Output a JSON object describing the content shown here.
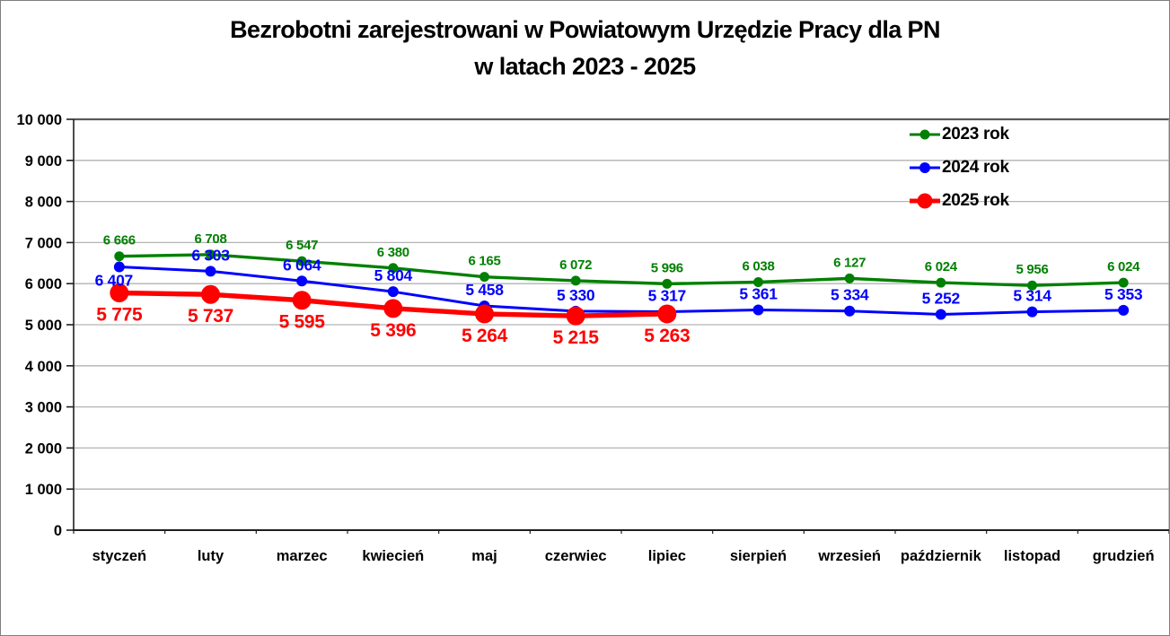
{
  "window": {
    "background": "#ffffff",
    "border_color": "#7f7f7f"
  },
  "title": {
    "line1": "Bezrobotni zarejestrowani w Powiatowym Urzędzie Pracy dla PN",
    "line2": "w latach 2023 - 2025"
  },
  "legend": {
    "items": [
      {
        "label": "2023 rok",
        "color": "#008000"
      },
      {
        "label": "2024 rok",
        "color": "#0000ff"
      },
      {
        "label": "2025 rok",
        "color": "#ff0000"
      }
    ]
  },
  "chart_data": {
    "type": "line",
    "title": "Bezrobotni zarejestrowani w Powiatowym Urzędzie Pracy dla PN w latach 2023 - 2025",
    "categories": [
      "styczeń",
      "luty",
      "marzec",
      "kwiecień",
      "maj",
      "czerwiec",
      "lipiec",
      "sierpień",
      "wrzesień",
      "październik",
      "listopad",
      "grudzień"
    ],
    "series": [
      {
        "name": "2023 rok",
        "color": "#008000",
        "values": [
          6666,
          6708,
          6547,
          6380,
          6165,
          6072,
          5996,
          6038,
          6127,
          6024,
          5956,
          6024
        ],
        "labels": [
          "6 666",
          "6 708",
          "6 547",
          "6 380",
          "6 165",
          "6 072",
          "5 996",
          "6 038",
          "6 127",
          "6 024",
          "5 956",
          "6 024"
        ]
      },
      {
        "name": "2024 rok",
        "color": "#0000ff",
        "values": [
          6407,
          6303,
          6064,
          5804,
          5458,
          5330,
          5317,
          5361,
          5334,
          5252,
          5314,
          5353
        ],
        "labels": [
          "6 407",
          "6 303",
          "6 064",
          "5 804",
          "5 458",
          "5 330",
          "5 317",
          "5 361",
          "5 334",
          "5 252",
          "5 314",
          "5 353"
        ]
      },
      {
        "name": "2025 rok",
        "color": "#ff0000",
        "values": [
          5775,
          5737,
          5595,
          5396,
          5264,
          5215,
          5263
        ],
        "labels": [
          "5 775",
          "5 737",
          "5 595",
          "5 396",
          "5 264",
          "5 215",
          "5 263"
        ]
      }
    ],
    "xlabel": "",
    "ylabel": "",
    "ylim": [
      0,
      10000
    ],
    "y_step": 1000,
    "y_tick_labels": [
      "0",
      "1 000",
      "2 000",
      "3 000",
      "4 000",
      "5 000",
      "6 000",
      "7 000",
      "8 000",
      "9 000",
      "10 000"
    ],
    "grid": "horizontal",
    "legend_position": "top-right",
    "colors": {
      "gridline": "#b3b3b3",
      "axis_dark": "#1f1f1f",
      "plot_border_top": "#595959",
      "plot_border_right": "#a6a6a6",
      "tick_text": "#000000"
    }
  }
}
